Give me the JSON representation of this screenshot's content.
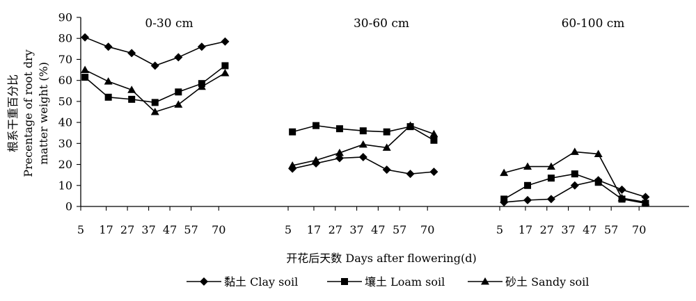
{
  "chart_data": {
    "type": "line",
    "xlabel": "开花后天数 Days after flowering(d)",
    "ylabel_cn": "根系干重百分比",
    "ylabel_en_1": "Precentage of root dry",
    "ylabel_en_2": "matter weight (%)",
    "ylim": [
      0,
      90
    ],
    "yticks": [
      0,
      10,
      20,
      30,
      40,
      50,
      60,
      70,
      80,
      90
    ],
    "x_tick_labels": [
      "5",
      "17",
      "27",
      "37",
      "47",
      "57",
      "70"
    ],
    "grid": false,
    "legend_position": "bottom",
    "panels": [
      {
        "title": "0-30 cm",
        "x": [
          7,
          18,
          29,
          40,
          51,
          62,
          73
        ],
        "series": [
          {
            "name": "黏土 Clay soil",
            "marker": "diamond",
            "values": [
              80.5,
              76,
              73,
              67,
              71,
              76,
              78.5
            ]
          },
          {
            "name": "壤土 Loam soil",
            "marker": "square",
            "values": [
              61.5,
              52,
              51,
              49.5,
              54.5,
              58.5,
              67
            ]
          },
          {
            "name": "砂土 Sandy soil",
            "marker": "triangle",
            "values": [
              65,
              59.5,
              55.5,
              45,
              48.5,
              57,
              63.5
            ]
          }
        ]
      },
      {
        "title": "30-60 cm",
        "x": [
          7,
          18,
          29,
          40,
          51,
          62,
          73
        ],
        "series": [
          {
            "name": "黏土 Clay soil",
            "marker": "diamond",
            "values": [
              18,
              20.5,
              23,
              23.5,
              17.5,
              15.5,
              16.5
            ]
          },
          {
            "name": "壤土 Loam soil",
            "marker": "square",
            "values": [
              35.5,
              38.5,
              37,
              36,
              35.5,
              38,
              31.5
            ]
          },
          {
            "name": "砂土 Sandy soil",
            "marker": "triangle",
            "values": [
              19.5,
              22,
              25.5,
              29.5,
              28,
              38.5,
              34.5
            ]
          }
        ]
      },
      {
        "title": "60-100 cm",
        "x": [
          7,
          18,
          29,
          40,
          51,
          62,
          73
        ],
        "series": [
          {
            "name": "黏土 Clay soil",
            "marker": "diamond",
            "values": [
              2,
              3,
              3.5,
              10,
              12.5,
              8,
              4.5
            ]
          },
          {
            "name": "壤土 Loam soil",
            "marker": "square",
            "values": [
              3.5,
              10,
              13.5,
              15.5,
              11.5,
              3.5,
              1.5
            ]
          },
          {
            "name": "砂土 Sandy soil",
            "marker": "triangle",
            "values": [
              16,
              19,
              19,
              26,
              25,
              4,
              2
            ]
          }
        ]
      }
    ],
    "legend": [
      {
        "name": "黏土 Clay soil",
        "marker": "diamond"
      },
      {
        "name": "壤土 Loam soil",
        "marker": "square"
      },
      {
        "name": "砂土 Sandy soil",
        "marker": "triangle"
      }
    ]
  }
}
